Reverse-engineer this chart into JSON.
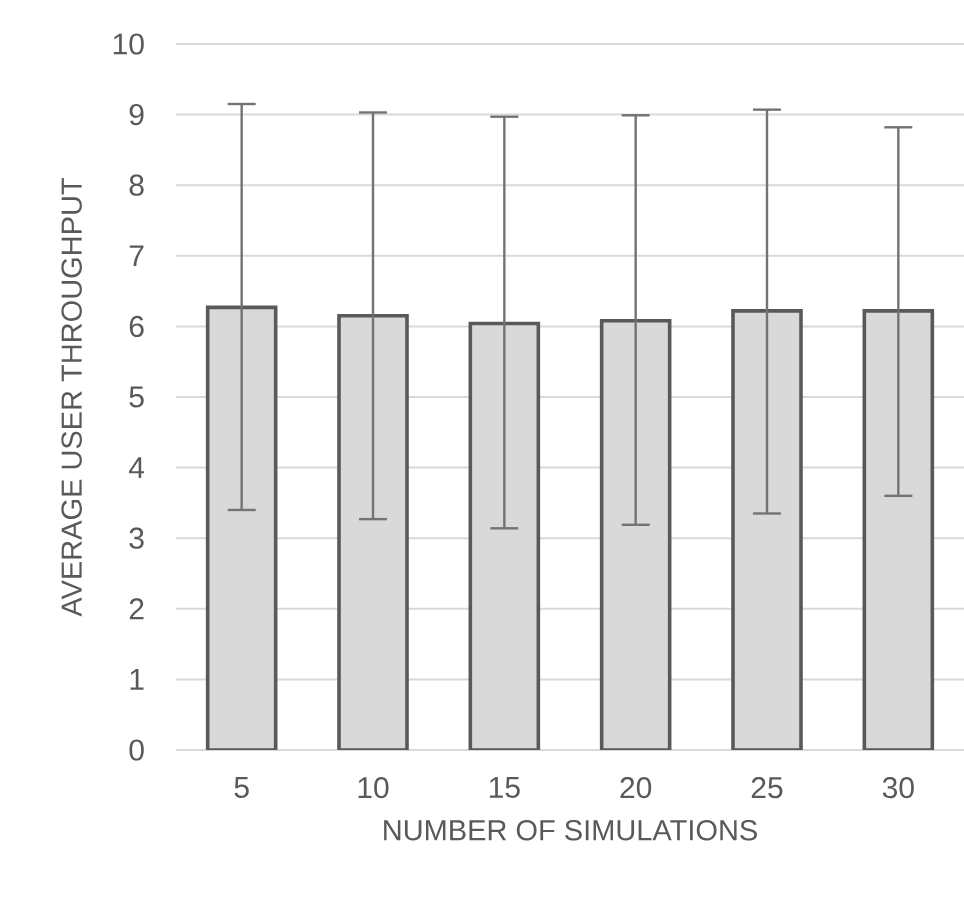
{
  "chart_data": {
    "type": "bar",
    "xlabel": "NUMBER OF SIMULATIONS",
    "ylabel": "AVERAGE  USER THROUGHPUT",
    "categories": [
      "5",
      "10",
      "15",
      "20",
      "25",
      "30"
    ],
    "values": [
      6.27,
      6.15,
      6.04,
      6.08,
      6.22,
      6.22
    ],
    "errors": [
      [
        3.4,
        9.15
      ],
      [
        3.27,
        9.03
      ],
      [
        3.14,
        8.97
      ],
      [
        3.19,
        8.99
      ],
      [
        3.35,
        9.07
      ],
      [
        3.6,
        8.82
      ]
    ],
    "color": "#d9d9d9",
    "ylim": [
      0,
      10
    ],
    "yticks": [
      0,
      1,
      2,
      3,
      4,
      5,
      6,
      7,
      8,
      9,
      10
    ],
    "grid": "y"
  }
}
